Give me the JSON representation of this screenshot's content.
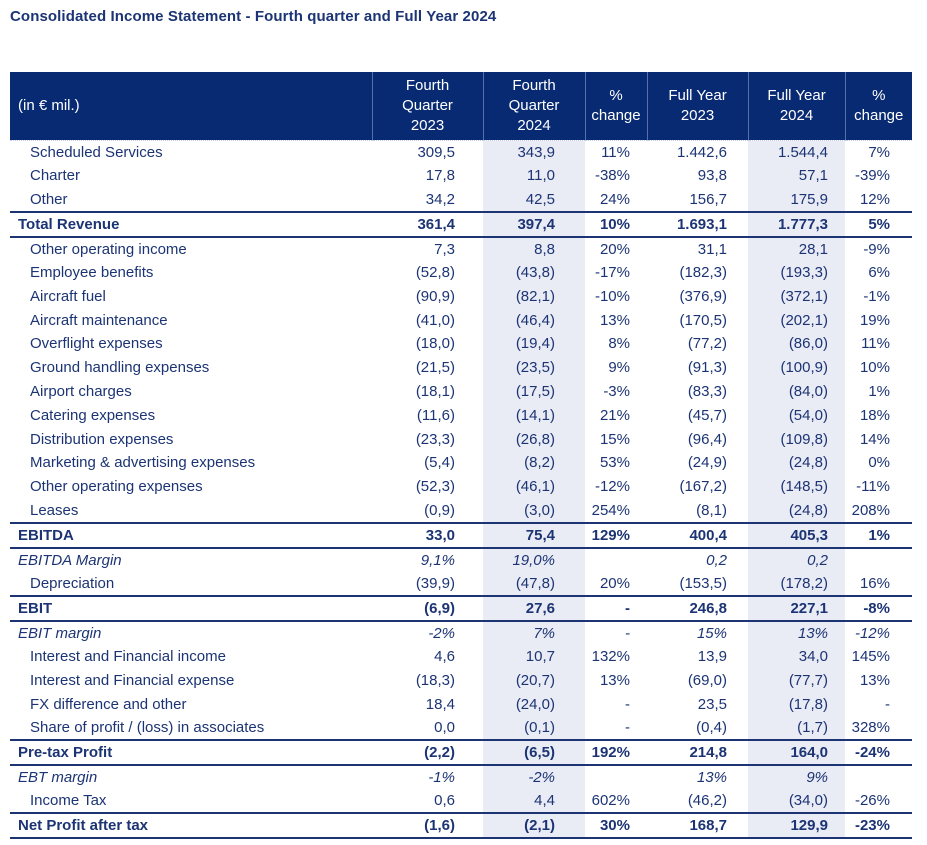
{
  "title": "Consolidated Income Statement - Fourth quarter and Full Year 2024",
  "colors": {
    "header_bg": "#082A73",
    "text": "#1C3474",
    "column_highlight": "#E9EBF5",
    "row_border": "#1C3474"
  },
  "table": {
    "unit_label": "(in € mil.)",
    "columns": [
      "Fourth\nQuarter\n2023",
      "Fourth\nQuarter\n2024",
      "%\nchange",
      "Full Year\n2023",
      "Full Year\n2024",
      "%\nchange"
    ],
    "rows": [
      {
        "label": "Scheduled Services",
        "style": "item",
        "values": [
          "309,5",
          "343,9",
          "11%",
          "1.442,6",
          "1.544,4",
          "7%"
        ]
      },
      {
        "label": "Charter",
        "style": "item",
        "values": [
          "17,8",
          "11,0",
          "-38%",
          "93,8",
          "57,1",
          "-39%"
        ]
      },
      {
        "label": "Other",
        "style": "item",
        "values": [
          "34,2",
          "42,5",
          "24%",
          "156,7",
          "175,9",
          "12%"
        ]
      },
      {
        "label": "Total Revenue",
        "style": "total",
        "values": [
          "361,4",
          "397,4",
          "10%",
          "1.693,1",
          "1.777,3",
          "5%"
        ]
      },
      {
        "label": "Other operating income",
        "style": "item",
        "values": [
          "7,3",
          "8,8",
          "20%",
          "31,1",
          "28,1",
          "-9%"
        ]
      },
      {
        "label": "Employee benefits",
        "style": "item",
        "values": [
          "(52,8)",
          "(43,8)",
          "-17%",
          "(182,3)",
          "(193,3)",
          "6%"
        ]
      },
      {
        "label": "Aircraft fuel",
        "style": "item",
        "values": [
          "(90,9)",
          "(82,1)",
          "-10%",
          "(376,9)",
          "(372,1)",
          "-1%"
        ]
      },
      {
        "label": "Aircraft maintenance",
        "style": "item",
        "values": [
          "(41,0)",
          "(46,4)",
          "13%",
          "(170,5)",
          "(202,1)",
          "19%"
        ]
      },
      {
        "label": "Overflight expenses",
        "style": "item",
        "values": [
          "(18,0)",
          "(19,4)",
          "8%",
          "(77,2)",
          "(86,0)",
          "11%"
        ]
      },
      {
        "label": "Ground handling expenses",
        "style": "item",
        "values": [
          "(21,5)",
          "(23,5)",
          "9%",
          "(91,3)",
          "(100,9)",
          "10%"
        ]
      },
      {
        "label": "Airport charges",
        "style": "item",
        "values": [
          "(18,1)",
          "(17,5)",
          "-3%",
          "(83,3)",
          "(84,0)",
          "1%"
        ]
      },
      {
        "label": "Catering expenses",
        "style": "item",
        "values": [
          "(11,6)",
          "(14,1)",
          "21%",
          "(45,7)",
          "(54,0)",
          "18%"
        ]
      },
      {
        "label": "Distribution expenses",
        "style": "item",
        "values": [
          "(23,3)",
          "(26,8)",
          "15%",
          "(96,4)",
          "(109,8)",
          "14%"
        ]
      },
      {
        "label": "Marketing & advertising expenses",
        "style": "item",
        "values": [
          "(5,4)",
          "(8,2)",
          "53%",
          "(24,9)",
          "(24,8)",
          "0%"
        ]
      },
      {
        "label": "Other operating expenses",
        "style": "item",
        "values": [
          "(52,3)",
          "(46,1)",
          "-12%",
          "(167,2)",
          "(148,5)",
          "-11%"
        ]
      },
      {
        "label": "Leases",
        "style": "item",
        "values": [
          "(0,9)",
          "(3,0)",
          "254%",
          "(8,1)",
          "(24,8)",
          "208%"
        ]
      },
      {
        "label": "EBITDA",
        "style": "total",
        "values": [
          "33,0",
          "75,4",
          "129%",
          "400,4",
          "405,3",
          "1%"
        ]
      },
      {
        "label": "EBITDA Margin",
        "style": "margin",
        "values": [
          "9,1%",
          "19,0%",
          "",
          "0,2",
          "0,2",
          ""
        ]
      },
      {
        "label": "Depreciation",
        "style": "item",
        "values": [
          "(39,9)",
          "(47,8)",
          "20%",
          "(153,5)",
          "(178,2)",
          "16%"
        ]
      },
      {
        "label": "EBIT",
        "style": "total",
        "values": [
          "(6,9)",
          "27,6",
          "-",
          "246,8",
          "227,1",
          "-8%"
        ]
      },
      {
        "label": "EBIT margin",
        "style": "margin",
        "values": [
          "-2%",
          "7%",
          "-",
          "15%",
          "13%",
          "-12%"
        ]
      },
      {
        "label": "Interest and Financial income",
        "style": "item",
        "values": [
          "4,6",
          "10,7",
          "132%",
          "13,9",
          "34,0",
          "145%"
        ]
      },
      {
        "label": "Interest and Financial expense",
        "style": "item",
        "values": [
          "(18,3)",
          "(20,7)",
          "13%",
          "(69,0)",
          "(77,7)",
          "13%"
        ]
      },
      {
        "label": "FX difference and other",
        "style": "item",
        "values": [
          "18,4",
          "(24,0)",
          "-",
          "23,5",
          "(17,8)",
          "-"
        ]
      },
      {
        "label": "Share of profit / (loss) in associates",
        "style": "item",
        "values": [
          "0,0",
          "(0,1)",
          "-",
          "(0,4)",
          "(1,7)",
          "328%"
        ]
      },
      {
        "label": "Pre-tax Profit",
        "style": "total",
        "values": [
          "(2,2)",
          "(6,5)",
          "192%",
          "214,8",
          "164,0",
          "-24%"
        ]
      },
      {
        "label": "EBT margin",
        "style": "margin",
        "values": [
          "-1%",
          "-2%",
          "",
          "13%",
          "9%",
          ""
        ]
      },
      {
        "label": "Income Tax",
        "style": "item",
        "values": [
          "0,6",
          "4,4",
          "602%",
          "(46,2)",
          "(34,0)",
          "-26%"
        ]
      },
      {
        "label": "Net Profit after tax",
        "style": "total",
        "values": [
          "(1,6)",
          "(2,1)",
          "30%",
          "168,7",
          "129,9",
          "-23%"
        ]
      }
    ]
  }
}
